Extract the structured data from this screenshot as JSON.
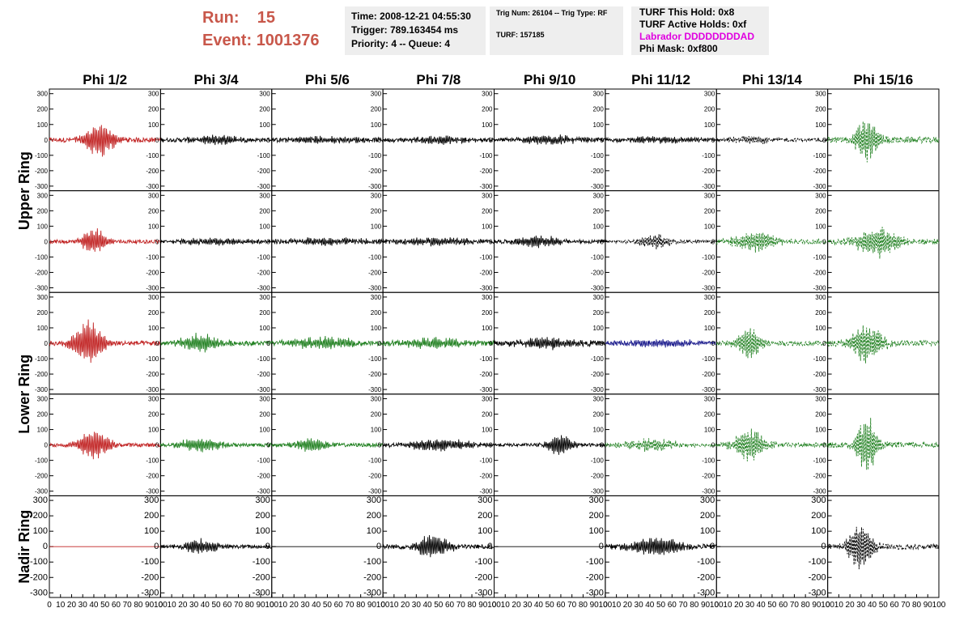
{
  "header": {
    "run_label": "Run:",
    "run_value": "15",
    "event_label": "Event:",
    "event_value": "1001376"
  },
  "info_box_1": {
    "time": "Time: 2008-12-21 04:55:30",
    "trigger": "Trigger: 789.163454 ms",
    "priority": "Priority: 4 -- Queue: 4"
  },
  "info_box_2": {
    "trig_line": "Trig Num: 26104 -- Trig Type: RF",
    "turf_line": "TURF: 157185"
  },
  "info_box_3": {
    "this_hold": "TURF This Hold: 0x8",
    "active_holds": "TURF Active Holds: 0xf",
    "labrador": "Labrador DDDDDDDDAD",
    "phi_mask": "Phi Mask: 0xf800"
  },
  "chart_data": {
    "type": "line",
    "columns": [
      "Phi 1/2",
      "Phi 3/4",
      "Phi 5/6",
      "Phi 7/8",
      "Phi 9/10",
      "Phi 11/12",
      "Phi 13/14",
      "Phi 15/16"
    ],
    "row_groups": [
      {
        "label": "Upper Ring",
        "rows": [
          0,
          1
        ]
      },
      {
        "label": "Lower Ring",
        "rows": [
          2,
          3
        ]
      },
      {
        "label": "Nadir Ring",
        "rows": [
          4
        ]
      }
    ],
    "ylim": [
      -330,
      330
    ],
    "y_ticks": [
      -300,
      -200,
      -100,
      0,
      100,
      200,
      300
    ],
    "xlim": [
      0,
      100
    ],
    "x_ticks": [
      0,
      10,
      20,
      30,
      40,
      50,
      60,
      70,
      80,
      90,
      100
    ],
    "x_tick_labels_bottom": [
      "0",
      "10",
      "20",
      "30",
      "40",
      "50",
      "60",
      "70",
      "80",
      "90",
      "100"
    ],
    "grid": false,
    "colors": {
      "red": "#c02020",
      "black": "#000000",
      "green": "#208020",
      "blue": "#1a1a8c"
    },
    "channels": [
      [
        {
          "color": "red",
          "dashed": false,
          "amp": 110,
          "center": 45,
          "width": 15,
          "noise": 15
        },
        {
          "color": "black",
          "dashed": false,
          "amp": 30,
          "center": 50,
          "width": 25,
          "noise": 12
        },
        {
          "color": "black",
          "dashed": false,
          "amp": 20,
          "center": 50,
          "width": 40,
          "noise": 12
        },
        {
          "color": "black",
          "dashed": false,
          "amp": 25,
          "center": 50,
          "width": 30,
          "noise": 12
        },
        {
          "color": "black",
          "dashed": false,
          "amp": 30,
          "center": 50,
          "width": 30,
          "noise": 12
        },
        {
          "color": "black",
          "dashed": false,
          "amp": 20,
          "center": 50,
          "width": 40,
          "noise": 10
        },
        {
          "color": "black",
          "dashed": true,
          "amp": 25,
          "center": 30,
          "width": 20,
          "noise": 10
        },
        {
          "color": "green",
          "dashed": true,
          "amp": 140,
          "center": 35,
          "width": 12,
          "noise": 20
        }
      ],
      [
        {
          "color": "red",
          "dashed": false,
          "amp": 90,
          "center": 40,
          "width": 12,
          "noise": 12
        },
        {
          "color": "black",
          "dashed": false,
          "amp": 20,
          "center": 50,
          "width": 40,
          "noise": 10
        },
        {
          "color": "black",
          "dashed": false,
          "amp": 25,
          "center": 50,
          "width": 40,
          "noise": 12
        },
        {
          "color": "black",
          "dashed": false,
          "amp": 25,
          "center": 50,
          "width": 40,
          "noise": 12
        },
        {
          "color": "black",
          "dashed": false,
          "amp": 40,
          "center": 40,
          "width": 20,
          "noise": 12
        },
        {
          "color": "black",
          "dashed": true,
          "amp": 50,
          "center": 45,
          "width": 15,
          "noise": 10
        },
        {
          "color": "green",
          "dashed": true,
          "amp": 70,
          "center": 35,
          "width": 20,
          "noise": 15
        },
        {
          "color": "green",
          "dashed": true,
          "amp": 100,
          "center": 45,
          "width": 20,
          "noise": 18
        }
      ],
      [
        {
          "color": "red",
          "dashed": false,
          "amp": 150,
          "center": 35,
          "width": 15,
          "noise": 15
        },
        {
          "color": "green",
          "dashed": false,
          "amp": 60,
          "center": 35,
          "width": 18,
          "noise": 15
        },
        {
          "color": "green",
          "dashed": false,
          "amp": 40,
          "center": 45,
          "width": 30,
          "noise": 15
        },
        {
          "color": "green",
          "dashed": false,
          "amp": 35,
          "center": 45,
          "width": 30,
          "noise": 15
        },
        {
          "color": "black",
          "dashed": false,
          "amp": 40,
          "center": 50,
          "width": 30,
          "noise": 15
        },
        {
          "color": "blue",
          "dashed": false,
          "amp": 25,
          "center": 50,
          "width": 40,
          "noise": 12
        },
        {
          "color": "green",
          "dashed": true,
          "amp": 110,
          "center": 30,
          "width": 12,
          "noise": 15
        },
        {
          "color": "green",
          "dashed": true,
          "amp": 130,
          "center": 35,
          "width": 15,
          "noise": 18
        }
      ],
      [
        {
          "color": "red",
          "dashed": false,
          "amp": 100,
          "center": 40,
          "width": 15,
          "noise": 12
        },
        {
          "color": "green",
          "dashed": false,
          "amp": 45,
          "center": 35,
          "width": 20,
          "noise": 12
        },
        {
          "color": "green",
          "dashed": false,
          "amp": 45,
          "center": 35,
          "width": 15,
          "noise": 12
        },
        {
          "color": "black",
          "dashed": false,
          "amp": 40,
          "center": 50,
          "width": 30,
          "noise": 12
        },
        {
          "color": "black",
          "dashed": false,
          "amp": 70,
          "center": 60,
          "width": 12,
          "noise": 10
        },
        {
          "color": "green",
          "dashed": true,
          "amp": 40,
          "center": 40,
          "width": 25,
          "noise": 12
        },
        {
          "color": "green",
          "dashed": true,
          "amp": 110,
          "center": 30,
          "width": 15,
          "noise": 15
        },
        {
          "color": "green",
          "dashed": true,
          "amp": 200,
          "center": 35,
          "width": 10,
          "noise": 18
        }
      ],
      [
        {
          "color": "red",
          "dashed": false,
          "amp": 0,
          "center": 50,
          "width": 30,
          "noise": 0
        },
        {
          "color": "black",
          "dashed": false,
          "amp": 55,
          "center": 35,
          "width": 15,
          "noise": 12
        },
        {
          "color": "black",
          "dashed": false,
          "amp": 0,
          "center": 50,
          "width": 30,
          "noise": 0
        },
        {
          "color": "black",
          "dashed": false,
          "amp": 85,
          "center": 45,
          "width": 15,
          "noise": 15
        },
        {
          "color": "black",
          "dashed": false,
          "amp": 0,
          "center": 50,
          "width": 30,
          "noise": 0
        },
        {
          "color": "black",
          "dashed": false,
          "amp": 65,
          "center": 45,
          "width": 25,
          "noise": 15
        },
        {
          "color": "black",
          "dashed": false,
          "amp": 0,
          "center": 50,
          "width": 30,
          "noise": 0
        },
        {
          "color": "black",
          "dashed": true,
          "amp": 150,
          "center": 30,
          "width": 12,
          "noise": 18
        }
      ]
    ]
  }
}
